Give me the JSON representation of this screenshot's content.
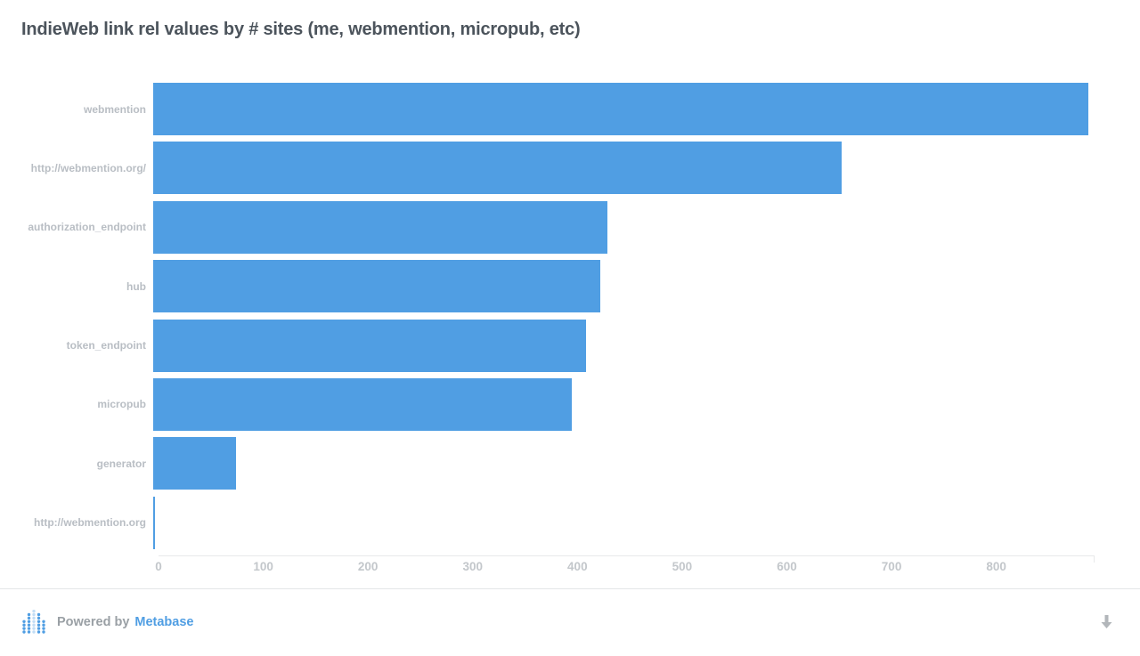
{
  "title": "IndieWeb link rel values by # sites (me, webmention, micropub, etc)",
  "chart_data": {
    "type": "bar",
    "orientation": "horizontal",
    "title": "IndieWeb link rel values by # sites (me, webmention, micropub, etc)",
    "categories": [
      "webmention",
      "http://webmention.org/",
      "authorization_endpoint",
      "hub",
      "token_endpoint",
      "micropub",
      "generator",
      "http://webmention.org"
    ],
    "values": [
      893,
      657,
      434,
      427,
      413,
      400,
      79,
      2
    ],
    "xlabel": "",
    "ylabel": "",
    "x_ticks": [
      "0",
      "100",
      "200",
      "300",
      "400",
      "500",
      "600",
      "700",
      "800"
    ],
    "x_tick_values": [
      0,
      100,
      200,
      300,
      400,
      500,
      600,
      700,
      800
    ],
    "xlim": [
      0,
      893
    ],
    "bar_color": "#509ee3",
    "grid": false,
    "legend": false
  },
  "footer": {
    "powered_by": "Powered by",
    "brand": "Metabase",
    "brand_color": "#509ee3"
  },
  "colors": {
    "bar": "#509ee3",
    "title": "#4c545c",
    "category_label": "#b9bec4",
    "tick_label": "#c3c7cb",
    "axis_line": "#e8e9ea"
  }
}
